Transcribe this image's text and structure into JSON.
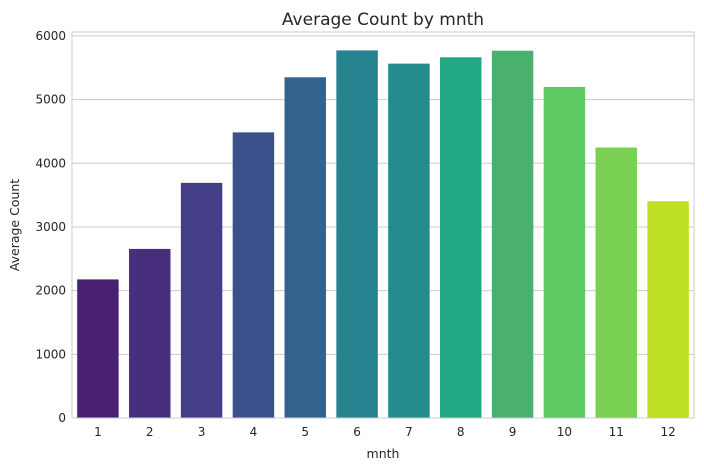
{
  "chart_data": {
    "type": "bar",
    "title": "Average Count by mnth",
    "xlabel": "mnth",
    "ylabel": "Average Count",
    "categories": [
      "1",
      "2",
      "3",
      "4",
      "5",
      "6",
      "7",
      "8",
      "9",
      "10",
      "11",
      "12"
    ],
    "values": [
      2176,
      2655,
      3692,
      4485,
      5350,
      5772,
      5564,
      5664,
      5767,
      5199,
      4247,
      3404
    ],
    "colors": [
      "#482173",
      "#472f7d",
      "#433e85",
      "#3c508b",
      "#33628d",
      "#26828e",
      "#238a8d",
      "#22a884",
      "#4ab06e",
      "#5ec962",
      "#7ad151",
      "#bddf26"
    ],
    "yticks": [
      0,
      1000,
      2000,
      3000,
      4000,
      5000,
      6000
    ],
    "ylim": [
      0,
      6061
    ],
    "grid": "horizontal",
    "legend": "none"
  }
}
